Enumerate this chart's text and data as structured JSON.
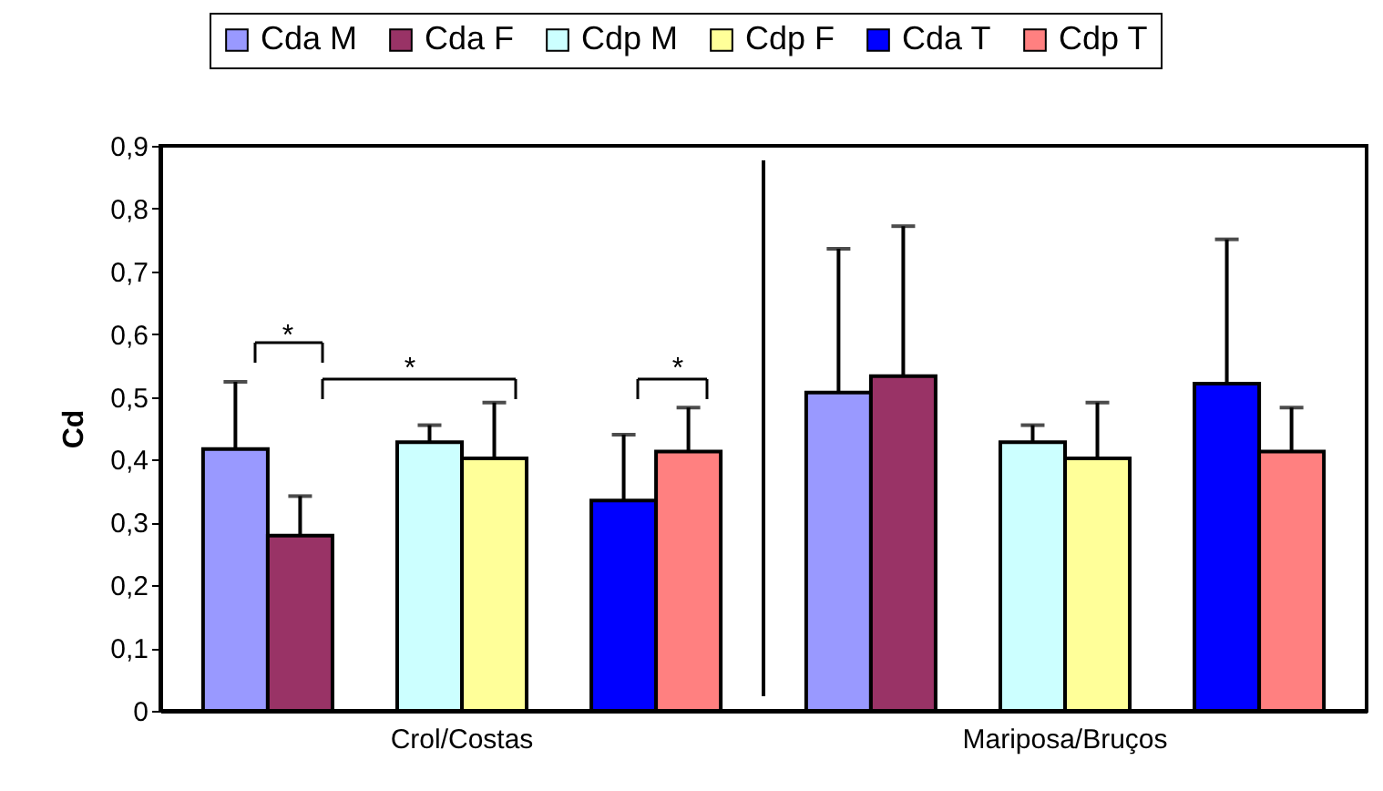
{
  "chart_data": {
    "type": "bar",
    "categories": [
      "Crol/Costas",
      "Mariposa/Bruços"
    ],
    "series": [
      {
        "name": "Cda M",
        "color": "#9999ff",
        "values": [
          0.417,
          0.507
        ],
        "errors": [
          [
            0.417,
            0.524
          ],
          [
            0.507,
            0.736
          ]
        ]
      },
      {
        "name": "Cda F",
        "color": "#993366",
        "values": [
          0.279,
          0.533
        ],
        "errors": [
          [
            0.279,
            0.342
          ],
          [
            0.533,
            0.772
          ]
        ]
      },
      {
        "name": "Cdp M",
        "color": "#ccffff",
        "values": [
          0.428,
          0.428
        ],
        "errors": [
          [
            0.428,
            0.455
          ],
          [
            0.428,
            0.455
          ]
        ]
      },
      {
        "name": "Cdp F",
        "color": "#ffff99",
        "values": [
          0.402,
          0.402
        ],
        "errors": [
          [
            0.402,
            0.491
          ],
          [
            0.402,
            0.491
          ]
        ]
      },
      {
        "name": "Cda T",
        "color": "#0000ff",
        "values": [
          0.335,
          0.521
        ],
        "errors": [
          [
            0.335,
            0.44
          ],
          [
            0.521,
            0.751
          ]
        ]
      },
      {
        "name": "Cdp T",
        "color": "#ff8080",
        "values": [
          0.413,
          0.413
        ],
        "errors": [
          [
            0.413,
            0.483
          ],
          [
            0.413,
            0.483
          ]
        ]
      }
    ],
    "ylabel": "Cd",
    "ylim": [
      0,
      0.9
    ],
    "yticks": [
      0,
      {
        "value": 0.1,
        "label": "0,1"
      },
      {
        "value": 0.2,
        "label": "0,2"
      },
      {
        "value": 0.3,
        "label": "0,3"
      },
      {
        "value": 0.4,
        "label": "0,4"
      },
      {
        "value": 0.5,
        "label": "0,5"
      },
      {
        "value": 0.6,
        "label": "0,6"
      },
      {
        "value": 0.7,
        "label": "0,7"
      },
      {
        "value": 0.8,
        "label": "0,8"
      },
      {
        "value": 0.9,
        "label": "0,9"
      }
    ],
    "annotations": [
      "*",
      "*",
      "*"
    ],
    "legend": "top",
    "grid": "x"
  }
}
